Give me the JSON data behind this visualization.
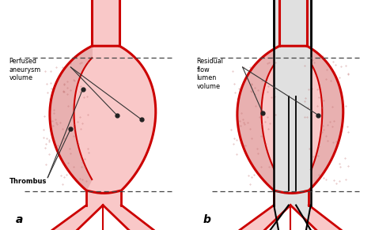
{
  "bg_color": "#ffffff",
  "red_dark": "#cc0000",
  "red_light": "#f9c8c8",
  "thrombus_color": "#e8b0b0",
  "gray_fill": "#e0e0e0",
  "label_a": "a",
  "label_b": "b",
  "text_perf": "Perfused\naneurysm\nvolume",
  "text_throm": "Thrombus",
  "text_resid": "Residual\nflow\nlumen\nvolume",
  "dashed_color": "#444444",
  "dot_color": "#222222"
}
